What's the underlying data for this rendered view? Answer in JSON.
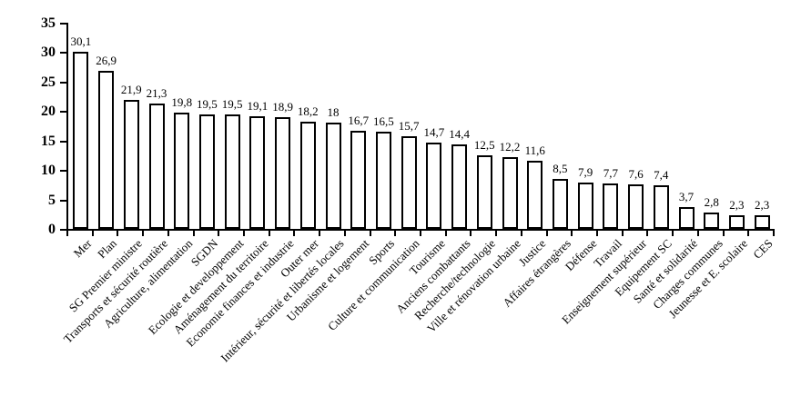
{
  "chart_data": {
    "type": "bar",
    "title": "",
    "xlabel": "",
    "ylabel": "",
    "categories": [
      "Mer",
      "Plan",
      "SG Premier ministre",
      "Transports et sécurité routière",
      "Agriculture, alimentation",
      "SGDN",
      "Ecologie et developpement",
      "Aménagement du territoire",
      "Economie finances et industrie",
      "Outer mer",
      "Intérieur, sécurité et libertés locales",
      "Urbanisme et logement",
      "Sports",
      "Culture et communication",
      "Tourisme",
      "Anciens combattants",
      "Recherche/technologie",
      "Ville et rénovation urbaine",
      "Justice",
      "Affaires étrangères",
      "Défense",
      "Travail",
      "Enseignement supérieur",
      "Equipement SC",
      "Santé et solidarité",
      "Charges communes",
      "Jeunesse et E. scolaire",
      "CES"
    ],
    "values": [
      30.1,
      26.9,
      21.9,
      21.3,
      19.8,
      19.5,
      19.5,
      19.1,
      18.9,
      18.2,
      18,
      16.7,
      16.5,
      15.7,
      14.7,
      14.4,
      12.5,
      12.2,
      11.6,
      8.5,
      7.9,
      7.7,
      7.6,
      7.4,
      3.7,
      2.8,
      2.3,
      2.3
    ],
    "value_labels": [
      "30,1",
      "26,9",
      "21,9",
      "21,3",
      "19,8",
      "19,5",
      "19,5",
      "19,1",
      "18,9",
      "18,2",
      "18",
      "16,7",
      "16,5",
      "15,7",
      "14,7",
      "14,4",
      "12,5",
      "12,2",
      "11,6",
      "8,5",
      "7,9",
      "7,7",
      "7,6",
      "7,4",
      "3,7",
      "2,8",
      "2,3",
      "2,3"
    ],
    "ylim": [
      0,
      35
    ],
    "yticks": [
      0,
      5,
      10,
      15,
      20,
      25,
      30,
      35
    ],
    "ytick_labels": [
      "0",
      "5",
      "10",
      "15",
      "20",
      "25",
      "30",
      "35"
    ],
    "grid": false,
    "legend": null,
    "colors": {
      "bar_fill": "#ffffff",
      "bar_border": "#000000",
      "text": "#000000",
      "background": "#ffffff"
    }
  }
}
